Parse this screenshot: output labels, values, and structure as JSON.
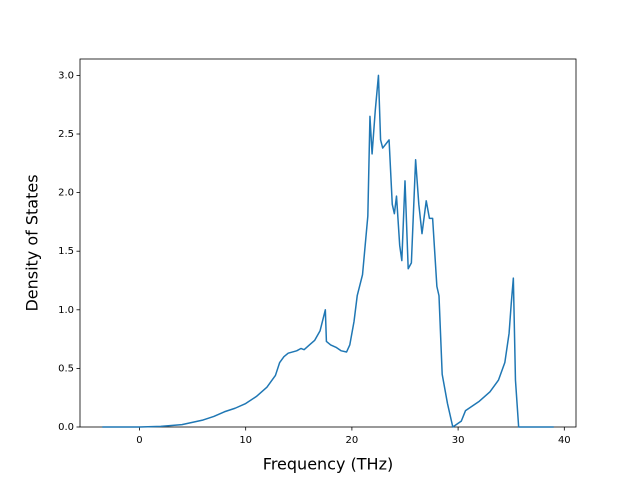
{
  "chart_data": {
    "type": "line",
    "x_label": "Frequency (THz)",
    "y_label": "Density of States",
    "series": [
      {
        "color": "#1f77b4",
        "x": [
          -3.5,
          0,
          2,
          4,
          6,
          7,
          8,
          9,
          10,
          11,
          12,
          12.8,
          13.2,
          13.6,
          14,
          14.8,
          15.2,
          15.5,
          16,
          16.5,
          17,
          17.5,
          17.6,
          18,
          18.5,
          19,
          19.5,
          19.8,
          20.2,
          20.5,
          21,
          21.5,
          21.7,
          21.9,
          22.2,
          22.5,
          22.7,
          22.9,
          23.5,
          23.8,
          24,
          24.2,
          24.5,
          24.7,
          25,
          25.3,
          25.6,
          26,
          26.3,
          26.6,
          27,
          27.3,
          27.6,
          28,
          28.2,
          28.5,
          29,
          29.5,
          30.3,
          30.7,
          32,
          33,
          33.8,
          34.4,
          34.8,
          35,
          35.2,
          35.4,
          35.7,
          39
        ],
        "values": [
          0,
          0,
          0.005,
          0.02,
          0.06,
          0.09,
          0.13,
          0.16,
          0.2,
          0.26,
          0.34,
          0.44,
          0.55,
          0.6,
          0.63,
          0.65,
          0.67,
          0.66,
          0.7,
          0.74,
          0.82,
          1.0,
          0.73,
          0.7,
          0.68,
          0.65,
          0.64,
          0.7,
          0.9,
          1.12,
          1.3,
          1.8,
          2.65,
          2.33,
          2.7,
          3.0,
          2.45,
          2.38,
          2.45,
          1.9,
          1.82,
          1.97,
          1.55,
          1.42,
          2.1,
          1.35,
          1.4,
          2.28,
          1.9,
          1.65,
          1.93,
          1.78,
          1.78,
          1.2,
          1.12,
          0.45,
          0.2,
          0.0,
          0.05,
          0.14,
          0.22,
          0.3,
          0.4,
          0.55,
          0.8,
          1.05,
          1.27,
          0.4,
          0.0,
          0
        ]
      }
    ],
    "xlim": [
      -5.6,
      41.1
    ],
    "xticks": [
      0,
      10,
      20,
      30,
      40
    ],
    "ylim": [
      0,
      3.14
    ],
    "yticks": [
      {
        "value": 0,
        "label": "0.0"
      },
      0.5,
      {
        "value": 1,
        "label": "1.0"
      },
      1.5,
      {
        "value": 2,
        "label": "2.0"
      },
      2.5,
      {
        "value": 3,
        "label": "3.0"
      }
    ]
  }
}
